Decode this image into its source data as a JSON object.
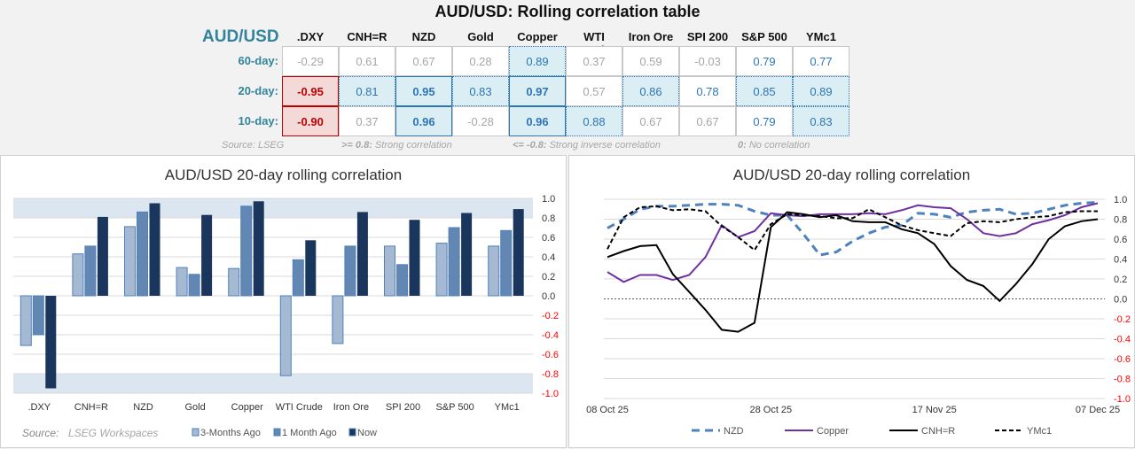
{
  "table": {
    "title": "AUD/USD: Rolling correlation table",
    "pair": "AUD/USD",
    "columns": [
      ".DXY",
      "CNH=R",
      "NZD",
      "Gold",
      "Copper",
      "WTI Crude",
      "Iron Ore",
      "SPI 200",
      "S&P 500",
      "YMc1"
    ],
    "rows": [
      {
        "label": "60-day:",
        "values": [
          "-0.29",
          "0.61",
          "0.67",
          "0.28",
          "0.89",
          "0.37",
          "0.59",
          "-0.03",
          "0.79",
          "0.77"
        ],
        "styles": [
          "weak",
          "weak",
          "weak",
          "weak",
          "hl",
          "weak",
          "weak",
          "weak",
          "blue",
          "blue"
        ]
      },
      {
        "label": "20-day:",
        "values": [
          "-0.95",
          "0.81",
          "0.95",
          "0.83",
          "0.97",
          "0.57",
          "0.86",
          "0.78",
          "0.85",
          "0.89"
        ],
        "styles": [
          "neg",
          "hl",
          "strong",
          "hl",
          "strong",
          "weak",
          "hl",
          "blue",
          "hl",
          "hl"
        ]
      },
      {
        "label": "10-day:",
        "values": [
          "-0.90",
          "0.37",
          "0.96",
          "-0.28",
          "0.96",
          "0.88",
          "0.67",
          "0.67",
          "0.79",
          "0.83"
        ],
        "styles": [
          "neg",
          "weak",
          "strong",
          "weak",
          "strong",
          "hl",
          "weak",
          "weak",
          "blue",
          "hl"
        ]
      }
    ],
    "footer": {
      "source": "Source: LSEG",
      "strong_key": ">= 0.8:",
      "strong_text": "Strong correlation",
      "inverse_key": "<= -0.8:",
      "inverse_text": "Strong inverse correlation",
      "zero_key": "0:",
      "zero_text": "No correlation"
    }
  },
  "chart_data": [
    {
      "type": "bar",
      "title": "AUD/USD 20-day rolling correlation",
      "categories": [
        ".DXY",
        "CNH=R",
        "NZD",
        "Gold",
        "Copper",
        "WTI Crude",
        "Iron Ore",
        "SPI 200",
        "S&P 500",
        "YMc1"
      ],
      "series": [
        {
          "name": "3-Months Ago",
          "color": "#a6b9d3",
          "values": [
            -0.51,
            0.43,
            0.71,
            0.29,
            0.28,
            -0.82,
            -0.49,
            0.51,
            0.54,
            0.51
          ]
        },
        {
          "name": "1 Month Ago",
          "color": "#6387b3",
          "values": [
            -0.4,
            0.51,
            0.86,
            0.22,
            0.92,
            0.37,
            0.51,
            0.32,
            0.7,
            0.67
          ]
        },
        {
          "name": "Now",
          "color": "#1b365d",
          "values": [
            -0.95,
            0.81,
            0.95,
            0.83,
            0.97,
            0.57,
            0.86,
            0.78,
            0.85,
            0.89
          ]
        }
      ],
      "ylim": [
        -1.0,
        1.0
      ],
      "yticks": [
        "1.0",
        "0.8",
        "0.6",
        "0.4",
        "0.2",
        "0.0",
        "-0.2",
        "-0.4",
        "-0.6",
        "-0.8",
        "-1.0"
      ],
      "shaded_bands": [
        [
          0.8,
          1.0
        ],
        [
          -1.0,
          -0.8
        ]
      ],
      "grid": true,
      "legend": "bottom",
      "source": "Source:",
      "source_name": "LSEG Workspaces"
    },
    {
      "type": "line",
      "title": "AUD/USD 20-day rolling correlation",
      "x": [
        "08 Oct 25",
        "10 Oct 25",
        "12 Oct 25",
        "14 Oct 25",
        "16 Oct 25",
        "18 Oct 25",
        "20 Oct 25",
        "22 Oct 25",
        "24 Oct 25",
        "26 Oct 25",
        "28 Oct 25",
        "30 Oct 25",
        "01 Nov 25",
        "03 Nov 25",
        "05 Nov 25",
        "07 Nov 25",
        "09 Nov 25",
        "11 Nov 25",
        "13 Nov 25",
        "15 Nov 25",
        "17 Nov 25",
        "19 Nov 25",
        "21 Nov 25",
        "23 Nov 25",
        "25 Nov 25",
        "27 Nov 25",
        "29 Nov 25",
        "01 Dec 25",
        "03 Dec 25",
        "05 Dec 25",
        "07 Dec 25"
      ],
      "xticks": [
        "08 Oct 25",
        "28 Oct 25",
        "17 Nov 25",
        "07 Dec 25"
      ],
      "series": [
        {
          "name": "NZD",
          "color": "#4f81bd",
          "dash": "dashed",
          "values": [
            0.71,
            0.8,
            0.9,
            0.93,
            0.93,
            0.94,
            0.95,
            0.95,
            0.94,
            0.88,
            0.84,
            0.84,
            0.65,
            0.44,
            0.47,
            0.58,
            0.66,
            0.72,
            0.74,
            0.86,
            0.85,
            0.82,
            0.87,
            0.89,
            0.9,
            0.85,
            0.86,
            0.9,
            0.94,
            0.96,
            0.97
          ]
        },
        {
          "name": "Copper",
          "color": "#7030a0",
          "dash": "solid",
          "values": [
            0.27,
            0.17,
            0.24,
            0.24,
            0.19,
            0.24,
            0.42,
            0.74,
            0.62,
            0.68,
            0.86,
            0.84,
            0.83,
            0.85,
            0.85,
            0.85,
            0.86,
            0.85,
            0.89,
            0.94,
            0.92,
            0.91,
            0.8,
            0.66,
            0.63,
            0.66,
            0.75,
            0.79,
            0.84,
            0.92,
            0.96
          ]
        },
        {
          "name": "CNH=R",
          "color": "#000000",
          "dash": "solid",
          "values": [
            0.42,
            0.48,
            0.53,
            0.54,
            0.25,
            0.07,
            -0.11,
            -0.31,
            -0.33,
            -0.24,
            0.72,
            0.87,
            0.85,
            0.82,
            0.84,
            0.78,
            0.77,
            0.77,
            0.7,
            0.66,
            0.55,
            0.33,
            0.19,
            0.13,
            -0.02,
            0.15,
            0.35,
            0.6,
            0.73,
            0.78,
            0.8
          ]
        },
        {
          "name": "YMc1",
          "color": "#000000",
          "dash": "dashed",
          "values": [
            0.5,
            0.82,
            0.92,
            0.93,
            0.89,
            0.9,
            0.88,
            0.73,
            0.62,
            0.49,
            0.75,
            0.85,
            0.84,
            0.83,
            0.81,
            0.81,
            0.9,
            0.82,
            0.74,
            0.69,
            0.66,
            0.63,
            0.76,
            0.78,
            0.77,
            0.8,
            0.82,
            0.83,
            0.87,
            0.88,
            0.88
          ]
        }
      ],
      "ylim": [
        -1.0,
        1.0
      ],
      "yticks": [
        "1.0",
        "0.8",
        "0.6",
        "0.4",
        "0.2",
        "0.0",
        "-0.2",
        "-0.4",
        "-0.6",
        "-0.8",
        "-1.0"
      ],
      "grid": true,
      "legend": "bottom"
    }
  ],
  "colors": {
    "negative_tick": "#ff0000",
    "accent": "#31849b"
  }
}
